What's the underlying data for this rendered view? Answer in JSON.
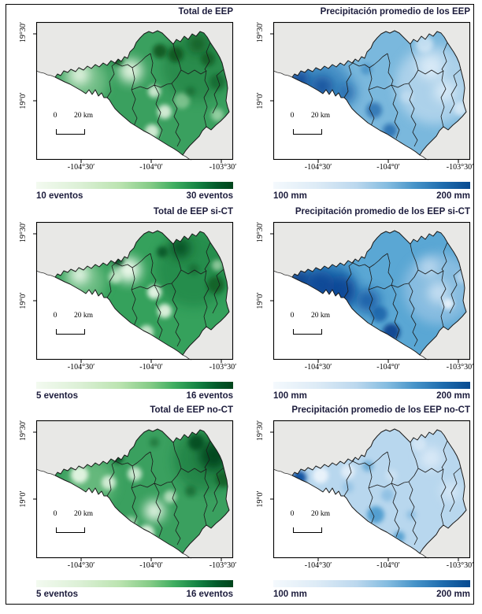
{
  "panels": [
    {
      "title": "Total de EEP",
      "palette": "green",
      "legend_min": "10 eventos",
      "legend_max": "30 eventos",
      "colorbar_start": "#f3faf0",
      "colorbar_end": "#00441b"
    },
    {
      "title": "Precipitación promedio de los EEP",
      "palette": "blue",
      "legend_min": "100 mm",
      "legend_max": "200 mm",
      "colorbar_start": "#f4f9fd",
      "colorbar_end": "#084a90"
    },
    {
      "title": "Total de EEP si-CT",
      "palette": "green",
      "legend_min": "5 eventos",
      "legend_max": "16 eventos",
      "colorbar_start": "#f3faf0",
      "colorbar_end": "#00441b"
    },
    {
      "title": "Precipitación promedio de los EEP si-CT",
      "palette": "blue",
      "legend_min": "100 mm",
      "legend_max": "200 mm",
      "colorbar_start": "#f4f9fd",
      "colorbar_end": "#084a90"
    },
    {
      "title": "Total de EEP no-CT",
      "palette": "green",
      "legend_min": "5 eventos",
      "legend_max": "16 eventos",
      "colorbar_start": "#f3faf0",
      "colorbar_end": "#00441b"
    },
    {
      "title": "Precipitación promedio de los EEP no-CT",
      "palette": "blue",
      "legend_min": "100 mm",
      "legend_max": "200 mm",
      "colorbar_start": "#f4f9fd",
      "colorbar_end": "#084a90"
    }
  ],
  "axes": {
    "lat_top": "19°30′",
    "lat_bottom": "19°0′",
    "lon_left": "-104°30′",
    "lon_center": "-104°0′",
    "lon_right": "-103°30′"
  },
  "scalebar": {
    "zero": "0",
    "label": "20 km"
  }
}
